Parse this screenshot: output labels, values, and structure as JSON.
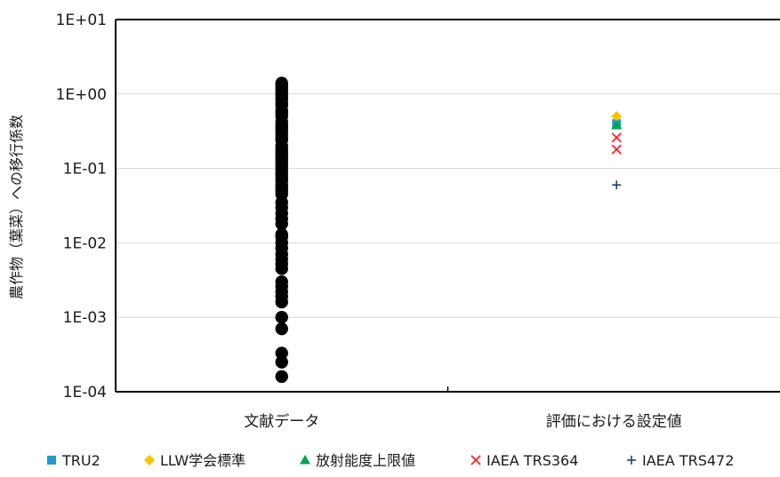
{
  "chart_data": {
    "type": "scatter",
    "title": "",
    "xlabel": "",
    "ylabel": "農作物（葉菜）への移行係数",
    "yscale": "log",
    "ylim": [
      0.0001,
      10
    ],
    "yticks": [
      {
        "value": 0.0001,
        "label": "1E-04"
      },
      {
        "value": 0.001,
        "label": "1E-03"
      },
      {
        "value": 0.01,
        "label": "1E-02"
      },
      {
        "value": 0.1,
        "label": "1E-01"
      },
      {
        "value": 1,
        "label": "1E+00"
      },
      {
        "value": 10,
        "label": "1E+01"
      }
    ],
    "categories": [
      "文献データ",
      "評価における設定値"
    ],
    "grid": true,
    "legend_position": "bottom",
    "series": [
      {
        "name": "",
        "marker": "circle",
        "color": "#000000",
        "category": "文献データ",
        "values": [
          1.4,
          1.3,
          1.2,
          1.1,
          1.0,
          0.92,
          0.85,
          0.75,
          0.7,
          0.6,
          0.55,
          0.5,
          0.42,
          0.38,
          0.35,
          0.32,
          0.29,
          0.26,
          0.24,
          0.2,
          0.18,
          0.165,
          0.15,
          0.14,
          0.13,
          0.12,
          0.11,
          0.1,
          0.09,
          0.082,
          0.075,
          0.068,
          0.06,
          0.055,
          0.05,
          0.045,
          0.035,
          0.03,
          0.025,
          0.021,
          0.018,
          0.013,
          0.012,
          0.01,
          0.0085,
          0.007,
          0.006,
          0.0052,
          0.0045,
          0.003,
          0.0026,
          0.0022,
          0.0019,
          0.0016,
          0.001,
          0.0007,
          0.00033,
          0.00025,
          0.00016
        ]
      },
      {
        "name": "TRU2",
        "marker": "square",
        "color": "#1E9BD7",
        "category": "評価における設定値",
        "values": [
          0.4
        ]
      },
      {
        "name": "LLW学会標準",
        "marker": "diamond",
        "color": "#FFC000",
        "category": "評価における設定値",
        "values": [
          0.5
        ]
      },
      {
        "name": "放射能度上限値",
        "marker": "triangle",
        "color": "#00A550",
        "category": "評価における設定値",
        "values": [
          0.38
        ]
      },
      {
        "name": "IAEA TRS364",
        "marker": "x",
        "color": "#FF2020",
        "category": "評価における設定値",
        "values": [
          0.26,
          0.18
        ]
      },
      {
        "name": "IAEA TRS472",
        "marker": "plus",
        "color": "#1F3F7A",
        "category": "評価における設定値",
        "values": [
          0.06
        ]
      }
    ]
  }
}
